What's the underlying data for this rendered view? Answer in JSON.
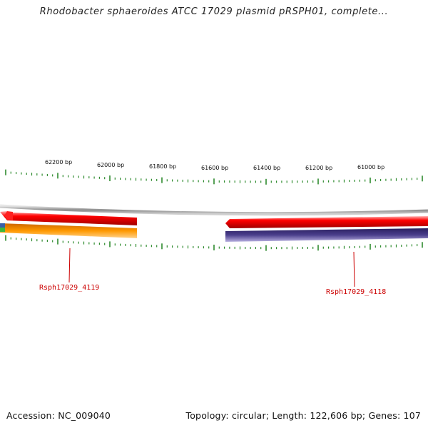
{
  "header": {
    "title": "Rhodobacter sphaeroides ATCC 17029 plasmid pRSPH01, complete..."
  },
  "ruler": {
    "labels": [
      "62200 bp",
      "62000 bp",
      "61800 bp",
      "61600 bp",
      "61400 bp",
      "61200 bp",
      "61000 bp"
    ],
    "tick_color": "#2e8b2e"
  },
  "genes": [
    {
      "label": "Rsph17029_4119",
      "color": "#cc0000"
    },
    {
      "label": "Rsph17029_4118",
      "color": "#cc0000"
    }
  ],
  "colors": {
    "backbone": "#8a8a8a",
    "forward_gene": "#ff0000",
    "reverse_gene_orange": "#ff9900",
    "reverse_gene_purple": "#4b3f8c",
    "green_feature": "#3cb83c",
    "blue_feature": "#3a5fa8"
  },
  "footer": {
    "accession": "Accession: NC_009040",
    "stats": "Topology: circular; Length: 122,606 bp; Genes: 107"
  }
}
